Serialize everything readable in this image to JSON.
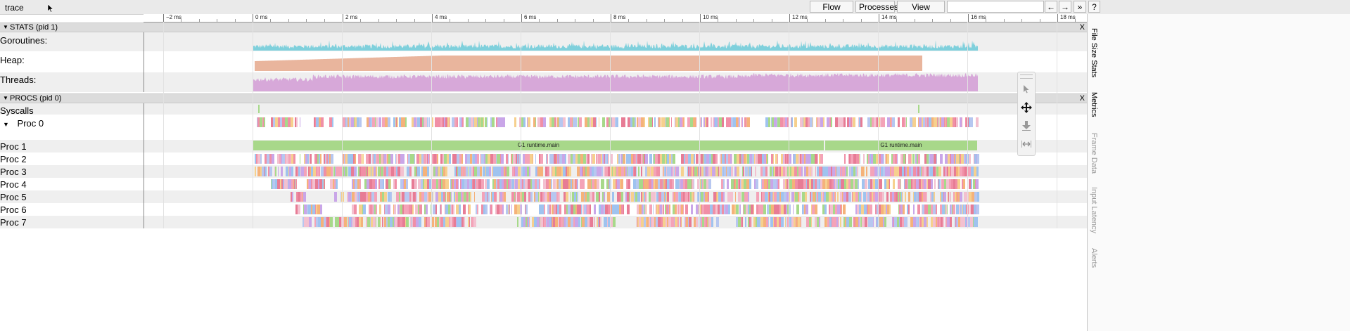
{
  "app": {
    "title": "trace"
  },
  "toolbar": {
    "flow_events": "Flow events",
    "processes": "Processes",
    "view_options": "View Options",
    "search_placeholder": "",
    "prev": "←",
    "next": "→",
    "collapse": "»",
    "help": "?"
  },
  "ruler": {
    "ticks": [
      "−2 ms",
      "0 ms",
      "2 ms",
      "4 ms",
      "6 ms",
      "8 ms",
      "10 ms",
      "12 ms",
      "14 ms",
      "16 ms",
      "18 ms"
    ]
  },
  "stats": {
    "header": "STATS (pid 1)",
    "close": "X",
    "counters": [
      {
        "label": "Goroutines:",
        "color": "#7fd0dc"
      },
      {
        "label": "Heap:",
        "color": "#e9b59d"
      },
      {
        "label": "Threads:",
        "color": "#d7a8d9"
      }
    ]
  },
  "procs": {
    "header": "PROCS (pid 0)",
    "close": "X",
    "syscalls": "Syscalls",
    "proc0": "Proc 0",
    "proc1": "Proc 1",
    "procs_rest": [
      "Proc 2",
      "Proc 3",
      "Proc 4",
      "Proc 5",
      "Proc 6",
      "Proc 7"
    ],
    "main_slice": "G1 runtime.main"
  },
  "side_tabs": [
    "File Size Stats",
    "Metrics",
    "Frame Data",
    "Input Latency",
    "Alerts"
  ],
  "colors": {
    "slice_palette": [
      "#f4a3b8",
      "#f08fa6",
      "#c9a6e8",
      "#9fc3ef",
      "#f5b27a",
      "#a7d98a",
      "#f3c1d0",
      "#e77c95",
      "#b7c7f0",
      "#f6d08e"
    ],
    "main_slice": "#a8d88a"
  }
}
